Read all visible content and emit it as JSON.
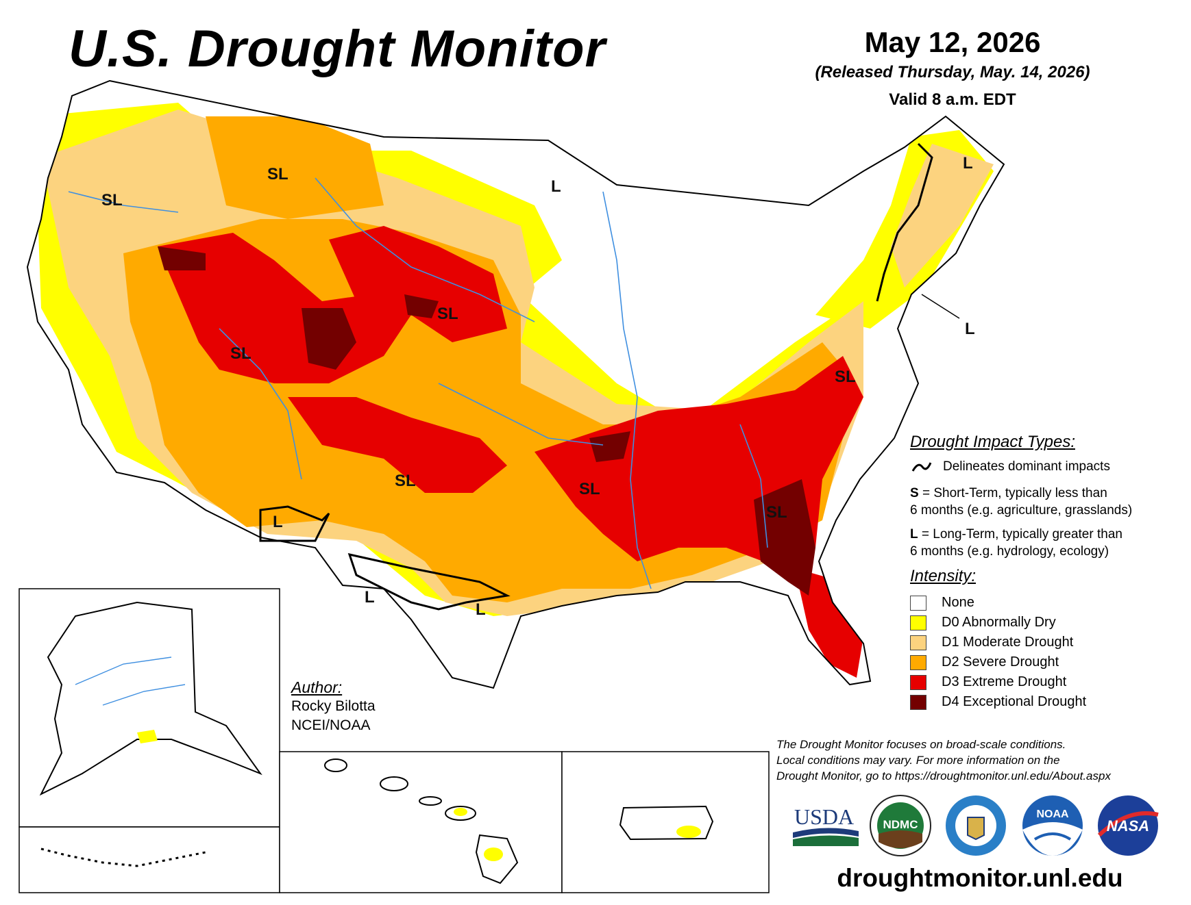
{
  "header": {
    "title": "U.S. Drought Monitor",
    "date": "May 12, 2026",
    "released": "(Released Thursday, May. 14, 2026)",
    "valid": "Valid 8 a.m. EDT"
  },
  "map_labels": {
    "sl": "SL",
    "l": "L"
  },
  "legend": {
    "impact_header": "Drought Impact Types:",
    "delineates": "Delineates dominant impacts",
    "short_term_key": "S",
    "short_term_line1": " = Short-Term, typically less than",
    "short_term_line2": "6 months (e.g. agriculture, grasslands)",
    "long_term_key": "L",
    "long_term_line1": " = Long-Term, typically greater than",
    "long_term_line2": "6 months (e.g. hydrology, ecology)",
    "intensity_header": "Intensity:",
    "categories": [
      {
        "label": "None",
        "color": "#ffffff"
      },
      {
        "label": "D0 Abnormally Dry",
        "color": "#ffff00"
      },
      {
        "label": "D1 Moderate Drought",
        "color": "#fcd37f"
      },
      {
        "label": "D2 Severe Drought",
        "color": "#ffaa00"
      },
      {
        "label": "D3 Extreme Drought",
        "color": "#e60000"
      },
      {
        "label": "D4 Exceptional Drought",
        "color": "#730000"
      }
    ]
  },
  "author": {
    "header": "Author:",
    "name": "Rocky Bilotta",
    "org": "NCEI/NOAA"
  },
  "disclaimer": {
    "line1": "The Drought Monitor focuses on broad-scale conditions.",
    "line2": "Local conditions may vary. For more information on the",
    "line3": "Drought Monitor, go to https://droughtmonitor.unl.edu/About.aspx"
  },
  "logos": {
    "usda": "USDA",
    "ndmc": "NDMC",
    "noaa": "NOAA",
    "nasa": "NASA"
  },
  "footer_url": "droughtmonitor.unl.edu"
}
